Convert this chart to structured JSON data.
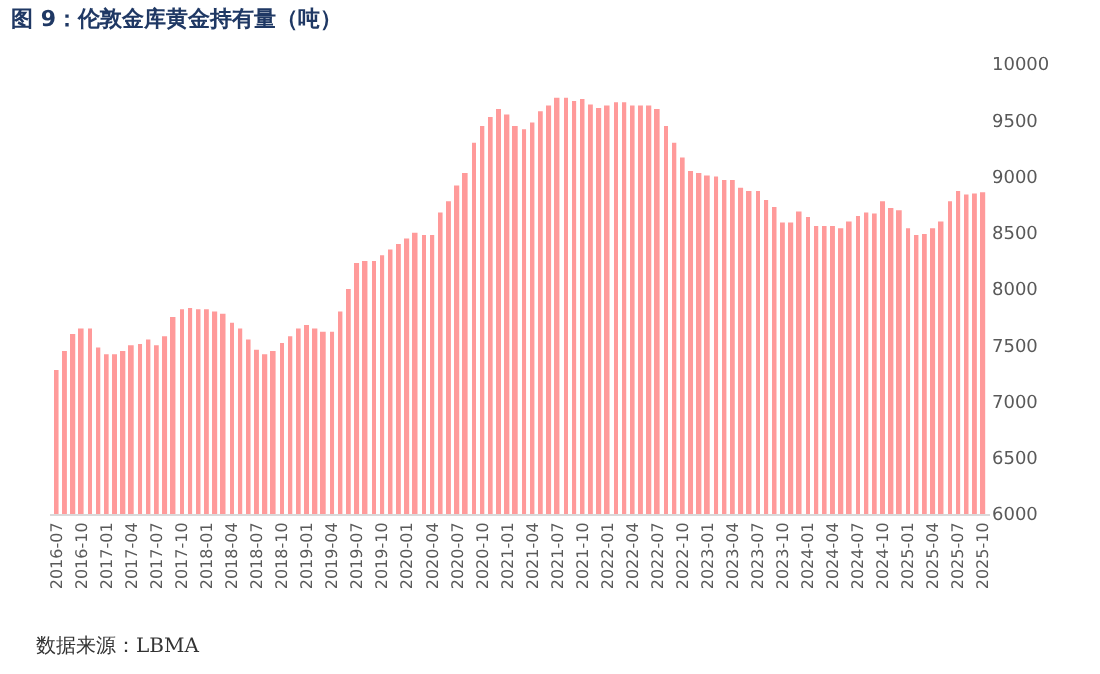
{
  "chart_data": {
    "type": "bar",
    "title": "图 9：伦敦金库黄金持有量（吨）",
    "categories": [
      "2016-07",
      null,
      null,
      "2016-10",
      null,
      null,
      "2017-01",
      null,
      null,
      "2017-04",
      null,
      null,
      "2017-07",
      null,
      null,
      "2017-10",
      null,
      null,
      "2018-01",
      null,
      null,
      "2018-04",
      null,
      null,
      "2018-07",
      null,
      null,
      "2018-10",
      null,
      null,
      "2019-01",
      null,
      null,
      "2019-04",
      null,
      null,
      "2019-07",
      null,
      null,
      "2019-10",
      null,
      null,
      "2020-01",
      null,
      null,
      "2020-04",
      null,
      null,
      "2020-07",
      null,
      null,
      "2020-10",
      null,
      null,
      "2021-01",
      null,
      null,
      "2021-04",
      null,
      null,
      "2021-07",
      null,
      null,
      "2021-10",
      null,
      null,
      "2022-01",
      null,
      null,
      "2022-04",
      null,
      null,
      "2022-07",
      null,
      null,
      "2022-10",
      null,
      null,
      "2023-01",
      null,
      null,
      "2023-04",
      null,
      null,
      "2023-07",
      null,
      null,
      "2023-10",
      null,
      null,
      "2024-01",
      null,
      null,
      "2024-04",
      null,
      null,
      "2024-07",
      null,
      null,
      "2024-10",
      null,
      null,
      "2025-01",
      null,
      null,
      "2025-04",
      null,
      null,
      "2025-07",
      null,
      null,
      "2025-10"
    ],
    "values": [
      7280,
      7450,
      7600,
      7650,
      7650,
      7480,
      7420,
      7420,
      7450,
      7500,
      7510,
      7550,
      7500,
      7580,
      7750,
      7820,
      7830,
      7820,
      7820,
      7800,
      7780,
      7700,
      7650,
      7550,
      7460,
      7420,
      7450,
      7520,
      7580,
      7650,
      7680,
      7650,
      7620,
      7620,
      7800,
      8000,
      8230,
      8250,
      8250,
      8300,
      8350,
      8400,
      8450,
      8500,
      8480,
      8480,
      8680,
      8780,
      8920,
      9030,
      9300,
      9450,
      9530,
      9600,
      9550,
      9450,
      9420,
      9480,
      9580,
      9630,
      9700,
      9700,
      9670,
      9690,
      9640,
      9610,
      9630,
      9660,
      9660,
      9630,
      9630,
      9630,
      9600,
      9450,
      9300,
      9170,
      9050,
      9030,
      9010,
      9000,
      8970,
      8970,
      8900,
      8870,
      8870,
      8790,
      8730,
      8590,
      8590,
      8690,
      8640,
      8560,
      8560,
      8560,
      8540,
      8600,
      8650,
      8680,
      8670,
      8780,
      8720,
      8700,
      8540,
      8480,
      8490,
      8540,
      8600,
      8780,
      8870,
      8840,
      8850,
      8860
    ],
    "color": "#ff9a9a",
    "ylim": [
      6000,
      10000
    ],
    "yticks": [
      6000,
      6500,
      7000,
      7500,
      8000,
      8500,
      9000,
      9500,
      10000
    ],
    "grid": false,
    "legend": false,
    "annotations": [
      "数据来源：LBMA"
    ]
  }
}
